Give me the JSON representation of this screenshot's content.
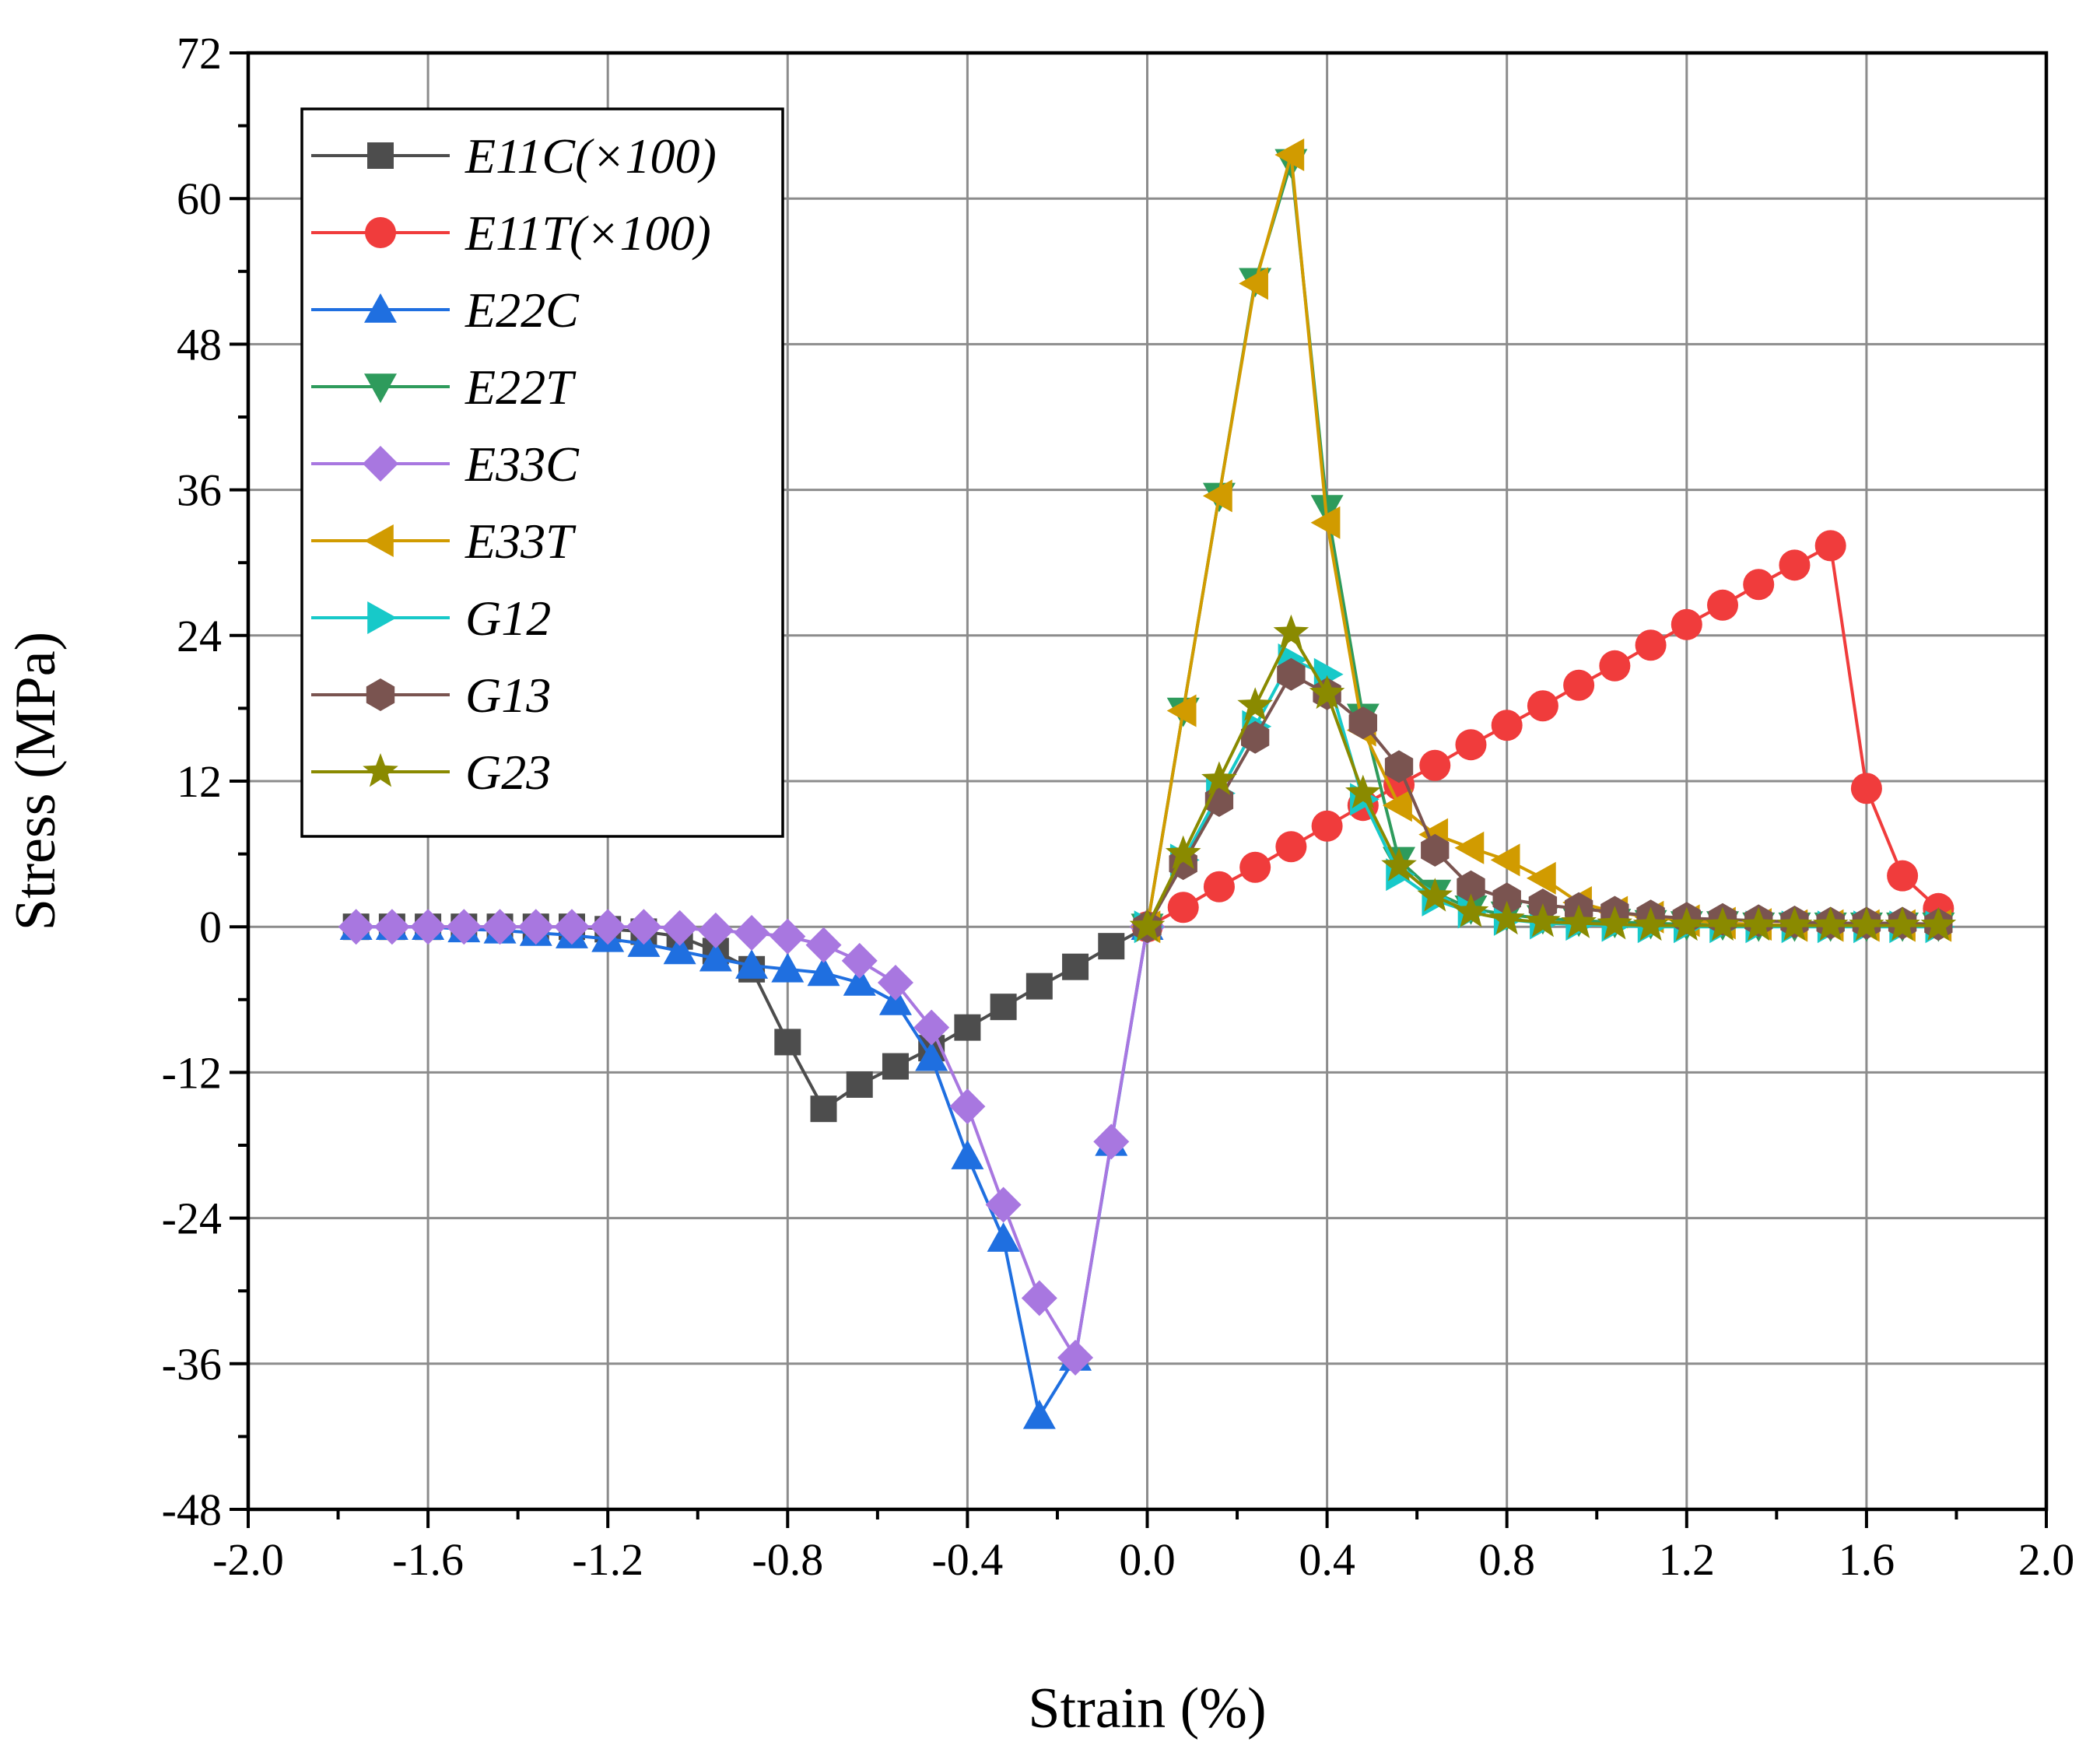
{
  "chart_data": {
    "type": "line",
    "title": "",
    "xlabel": "Strain (%)",
    "ylabel": "Stress (MPa)",
    "xlim": [
      -2.0,
      2.0
    ],
    "ylim": [
      -48,
      72
    ],
    "xticks": [
      "-2.0",
      "-1.6",
      "-1.2",
      "-0.8",
      "-0.4",
      "0.0",
      "0.4",
      "0.8",
      "1.2",
      "1.6",
      "2.0"
    ],
    "yticks": [
      "72",
      "60",
      "48",
      "36",
      "24",
      "12",
      "0",
      "-12",
      "-24",
      "-36",
      "-48"
    ],
    "xtick_values": [
      -2.0,
      -1.6,
      -1.2,
      -0.8,
      -0.4,
      0.0,
      0.4,
      0.8,
      1.2,
      1.6,
      2.0
    ],
    "ytick_values": [
      72,
      60,
      48,
      36,
      24,
      12,
      0,
      -12,
      -24,
      -36,
      -48
    ],
    "grid": true,
    "legend_position": "top-left",
    "series": [
      {
        "name": "E11C(×100)",
        "color": "#4d4d4d",
        "marker": "square",
        "x": [
          -1.76,
          -1.68,
          -1.6,
          -1.52,
          -1.44,
          -1.36,
          -1.28,
          -1.2,
          -1.12,
          -1.04,
          -0.96,
          -0.88,
          -0.8,
          -0.72,
          -0.64,
          -0.56,
          -0.48,
          -0.4,
          -0.32,
          -0.24,
          -0.16,
          -0.08,
          0.0
        ],
        "y": [
          0,
          0,
          0,
          0,
          0,
          0,
          0,
          -0.2,
          -0.4,
          -0.8,
          -2.0,
          -3.5,
          -9.5,
          -15,
          -13,
          -11.5,
          -10,
          -8.3,
          -6.6,
          -4.9,
          -3.3,
          -1.6,
          0
        ]
      },
      {
        "name": "E11T(×100)",
        "color": "#f03c3c",
        "marker": "circle",
        "x": [
          0.0,
          0.08,
          0.16,
          0.24,
          0.32,
          0.4,
          0.48,
          0.56,
          0.64,
          0.72,
          0.8,
          0.88,
          0.96,
          1.04,
          1.12,
          1.2,
          1.28,
          1.36,
          1.44,
          1.52,
          1.6,
          1.68,
          1.76
        ],
        "y": [
          0,
          1.6,
          3.3,
          4.9,
          6.6,
          8.3,
          10,
          11.7,
          13.3,
          15,
          16.6,
          18.2,
          19.9,
          21.5,
          23.2,
          24.9,
          26.5,
          28.2,
          29.8,
          31.4,
          11.4,
          4.2,
          1.5
        ]
      },
      {
        "name": "E22C",
        "color": "#1f6fe0",
        "marker": "triangle-up",
        "x": [
          -1.76,
          -1.68,
          -1.6,
          -1.52,
          -1.44,
          -1.36,
          -1.28,
          -1.2,
          -1.12,
          -1.04,
          -0.96,
          -0.88,
          -0.8,
          -0.72,
          -0.64,
          -0.56,
          -0.48,
          -0.4,
          -0.32,
          -0.24,
          -0.16,
          -0.08,
          0.0
        ],
        "y": [
          0,
          0,
          0,
          -0.2,
          -0.3,
          -0.5,
          -0.7,
          -1.0,
          -1.4,
          -2.0,
          -2.6,
          -3.2,
          -3.5,
          -3.8,
          -4.6,
          -6.2,
          -10.8,
          -18.9,
          -25.7,
          -40.3,
          -35.5,
          -17.8,
          0
        ]
      },
      {
        "name": "E22T",
        "color": "#2e9b5c",
        "marker": "triangle-down",
        "x": [
          0.0,
          0.08,
          0.16,
          0.24,
          0.32,
          0.4,
          0.48,
          0.56,
          0.64,
          0.72,
          0.8,
          0.88,
          0.96,
          1.04,
          1.12,
          1.2,
          1.28,
          1.36,
          1.44,
          1.52,
          1.6,
          1.68,
          1.76
        ],
        "y": [
          0,
          17.8,
          35.5,
          53.2,
          63.0,
          34.5,
          17.3,
          5.5,
          2.8,
          1.5,
          1.0,
          0.7,
          0.5,
          0.4,
          0.3,
          0.2,
          0.2,
          0.1,
          0.1,
          0.1,
          0.1,
          0.1,
          0.1
        ]
      },
      {
        "name": "E33C",
        "color": "#a877e0",
        "marker": "diamond",
        "x": [
          -1.76,
          -1.68,
          -1.6,
          -1.52,
          -1.44,
          -1.36,
          -1.28,
          -1.2,
          -1.12,
          -1.04,
          -0.96,
          -0.88,
          -0.8,
          -0.72,
          -0.64,
          -0.56,
          -0.48,
          -0.4,
          -0.32,
          -0.24,
          -0.16,
          -0.08,
          0.0
        ],
        "y": [
          0,
          0,
          0,
          0,
          0,
          0,
          0,
          0,
          0,
          -0.1,
          -0.3,
          -0.5,
          -0.8,
          -1.5,
          -2.8,
          -4.6,
          -8.3,
          -14.8,
          -22.9,
          -30.6,
          -35.5,
          -17.7,
          0
        ]
      },
      {
        "name": "E33T",
        "color": "#d19b00",
        "marker": "triangle-left",
        "x": [
          0.0,
          0.08,
          0.16,
          0.24,
          0.32,
          0.4,
          0.48,
          0.56,
          0.64,
          0.72,
          0.8,
          0.88,
          0.96,
          1.04,
          1.12,
          1.2,
          1.28,
          1.36,
          1.44,
          1.52,
          1.6,
          1.68,
          1.76
        ],
        "y": [
          0,
          17.8,
          35.5,
          53.0,
          63.6,
          33.3,
          16.2,
          10.0,
          7.6,
          6.5,
          5.5,
          4.0,
          2.0,
          1.2,
          0.8,
          0.5,
          0.3,
          0.2,
          0.1,
          0.1,
          0.1,
          0.1,
          0.1
        ]
      },
      {
        "name": "G12",
        "color": "#17c9c9",
        "marker": "triangle-right",
        "x": [
          0.0,
          0.08,
          0.16,
          0.24,
          0.32,
          0.4,
          0.48,
          0.56,
          0.64,
          0.72,
          0.8,
          0.88,
          0.96,
          1.04,
          1.12,
          1.2,
          1.28,
          1.36,
          1.44,
          1.52,
          1.6,
          1.68,
          1.76
        ],
        "y": [
          0,
          5.5,
          11.0,
          16.5,
          22.0,
          20.8,
          10.5,
          4.3,
          2.2,
          1.2,
          0.6,
          0.3,
          0.2,
          0.1,
          0,
          0,
          0,
          0,
          0,
          0,
          0,
          0,
          0
        ]
      },
      {
        "name": "G13",
        "color": "#7a5450",
        "marker": "hexagon",
        "x": [
          0.0,
          0.08,
          0.16,
          0.24,
          0.32,
          0.4,
          0.48,
          0.56,
          0.64,
          0.72,
          0.8,
          0.88,
          0.96,
          1.04,
          1.12,
          1.2,
          1.28,
          1.36,
          1.44,
          1.52,
          1.6,
          1.68,
          1.76
        ],
        "y": [
          0,
          5.2,
          10.4,
          15.6,
          20.8,
          19.2,
          16.8,
          13.2,
          6.3,
          3.3,
          2.3,
          1.8,
          1.5,
          1.2,
          0.9,
          0.7,
          0.6,
          0.5,
          0.4,
          0.3,
          0.3,
          0.3,
          0.2
        ]
      },
      {
        "name": "G23",
        "color": "#8a8a00",
        "marker": "star",
        "x": [
          0.0,
          0.08,
          0.16,
          0.24,
          0.32,
          0.4,
          0.48,
          0.56,
          0.64,
          0.72,
          0.8,
          0.88,
          0.96,
          1.04,
          1.12,
          1.2,
          1.28,
          1.36,
          1.44,
          1.52,
          1.6,
          1.68,
          1.76
        ],
        "y": [
          0,
          6.0,
          12.1,
          18.2,
          24.2,
          19.2,
          11.0,
          5.0,
          2.5,
          1.2,
          0.6,
          0.4,
          0.3,
          0.2,
          0.1,
          0.1,
          0.1,
          0.1,
          0.1,
          0.1,
          0.1,
          0.1,
          0.1
        ]
      }
    ]
  }
}
